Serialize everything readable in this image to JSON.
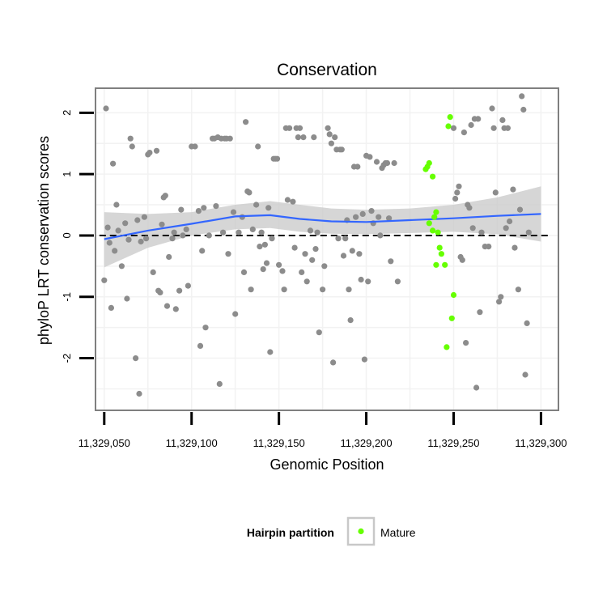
{
  "chart_data": {
    "type": "scatter",
    "title": "Conservation",
    "xlabel": "Genomic Position",
    "ylabel": "phyloP LRT conservation scores",
    "xlim": [
      11329045,
      11329310
    ],
    "ylim": [
      -2.85,
      2.4
    ],
    "x_ticks": [
      11329050,
      11329100,
      11329150,
      11329200,
      11329250,
      11329300
    ],
    "x_tick_labels": [
      "11,329,050",
      "11,329,100",
      "11,329,150",
      "11,329,200",
      "11,329,250",
      "11,329,300"
    ],
    "y_ticks": [
      -2,
      -1,
      0,
      1,
      2
    ],
    "y_tick_labels": [
      "-2",
      "-1",
      "0",
      "1",
      "2"
    ],
    "grid": true,
    "reference_line": {
      "y": 0,
      "style": "dashed"
    },
    "legend": {
      "title": "Hairpin partition",
      "placement": "bottom",
      "entries": [
        "Mature"
      ]
    },
    "colors": {
      "other": "#8c8c8c",
      "mature": "#66ff00",
      "smooth": "#3366ff",
      "ribbon": "#c8c8c8",
      "panel_border": "#7f7f7f",
      "grid": "#f2f2f2"
    },
    "series": [
      {
        "name": "Mature",
        "points": [
          [
            11329234,
            1.08
          ],
          [
            11329235,
            1.12
          ],
          [
            11329236,
            1.18
          ],
          [
            11329238,
            0.96
          ],
          [
            11329239,
            0.3
          ],
          [
            11329240,
            0.38
          ],
          [
            11329241,
            0.05
          ],
          [
            11329242,
            -0.2
          ],
          [
            11329243,
            -0.3
          ],
          [
            11329245,
            -0.48
          ],
          [
            11329246,
            -1.82
          ],
          [
            11329247,
            1.78
          ],
          [
            11329248,
            1.93
          ],
          [
            11329249,
            -1.35
          ],
          [
            11329250,
            -0.97
          ],
          [
            11329236,
            0.2
          ],
          [
            11329238,
            0.08
          ],
          [
            11329240,
            -0.48
          ]
        ]
      }
    ],
    "other_points": [
      [
        11329050,
        -0.73
      ],
      [
        11329051,
        2.07
      ],
      [
        11329052,
        0.13
      ],
      [
        11329053,
        -0.12
      ],
      [
        11329054,
        -1.18
      ],
      [
        11329055,
        1.17
      ],
      [
        11329056,
        -0.25
      ],
      [
        11329057,
        0.5
      ],
      [
        11329058,
        0.08
      ],
      [
        11329060,
        -0.5
      ],
      [
        11329062,
        0.2
      ],
      [
        11329063,
        -1.03
      ],
      [
        11329064,
        -0.07
      ],
      [
        11329065,
        1.58
      ],
      [
        11329066,
        1.45
      ],
      [
        11329068,
        -2.0
      ],
      [
        11329069,
        0.25
      ],
      [
        11329070,
        -2.58
      ],
      [
        11329071,
        -0.1
      ],
      [
        11329073,
        0.3
      ],
      [
        11329074,
        -0.05
      ],
      [
        11329075,
        1.32
      ],
      [
        11329076,
        1.35
      ],
      [
        11329078,
        -0.6
      ],
      [
        11329080,
        1.38
      ],
      [
        11329081,
        -0.9
      ],
      [
        11329082,
        -0.93
      ],
      [
        11329083,
        0.18
      ],
      [
        11329084,
        0.62
      ],
      [
        11329085,
        0.65
      ],
      [
        11329086,
        -1.15
      ],
      [
        11329087,
        -0.35
      ],
      [
        11329089,
        -0.05
      ],
      [
        11329090,
        0.05
      ],
      [
        11329091,
        -1.2
      ],
      [
        11329093,
        -0.9
      ],
      [
        11329094,
        0.42
      ],
      [
        11329095,
        0.0
      ],
      [
        11329097,
        0.1
      ],
      [
        11329098,
        -0.82
      ],
      [
        11329100,
        1.45
      ],
      [
        11329102,
        1.45
      ],
      [
        11329104,
        0.4
      ],
      [
        11329105,
        -1.8
      ],
      [
        11329106,
        -0.25
      ],
      [
        11329107,
        0.45
      ],
      [
        11329108,
        -1.5
      ],
      [
        11329110,
        0.0
      ],
      [
        11329112,
        1.58
      ],
      [
        11329113,
        1.58
      ],
      [
        11329114,
        0.48
      ],
      [
        11329115,
        1.6
      ],
      [
        11329116,
        -2.42
      ],
      [
        11329117,
        1.58
      ],
      [
        11329118,
        0.05
      ],
      [
        11329119,
        1.58
      ],
      [
        11329120,
        1.58
      ],
      [
        11329121,
        -0.3
      ],
      [
        11329122,
        1.58
      ],
      [
        11329124,
        0.38
      ],
      [
        11329125,
        -1.28
      ],
      [
        11329127,
        0.05
      ],
      [
        11329129,
        0.3
      ],
      [
        11329130,
        -0.6
      ],
      [
        11329131,
        1.85
      ],
      [
        11329132,
        0.72
      ],
      [
        11329133,
        0.7
      ],
      [
        11329134,
        -0.88
      ],
      [
        11329135,
        0.1
      ],
      [
        11329137,
        0.5
      ],
      [
        11329138,
        1.45
      ],
      [
        11329139,
        -0.18
      ],
      [
        11329140,
        0.05
      ],
      [
        11329141,
        -0.55
      ],
      [
        11329142,
        -0.15
      ],
      [
        11329143,
        -0.45
      ],
      [
        11329144,
        0.45
      ],
      [
        11329145,
        -1.9
      ],
      [
        11329146,
        -0.05
      ],
      [
        11329147,
        1.25
      ],
      [
        11329148,
        1.25
      ],
      [
        11329149,
        1.25
      ],
      [
        11329150,
        -0.48
      ],
      [
        11329152,
        -0.58
      ],
      [
        11329153,
        -0.88
      ],
      [
        11329154,
        1.75
      ],
      [
        11329155,
        0.58
      ],
      [
        11329156,
        1.75
      ],
      [
        11329158,
        0.55
      ],
      [
        11329159,
        -0.2
      ],
      [
        11329160,
        1.75
      ],
      [
        11329161,
        1.6
      ],
      [
        11329162,
        1.75
      ],
      [
        11329163,
        -0.6
      ],
      [
        11329164,
        1.6
      ],
      [
        11329165,
        -0.3
      ],
      [
        11329166,
        -0.75
      ],
      [
        11329168,
        0.08
      ],
      [
        11329169,
        -0.4
      ],
      [
        11329170,
        1.6
      ],
      [
        11329171,
        -0.22
      ],
      [
        11329172,
        0.05
      ],
      [
        11329173,
        -1.58
      ],
      [
        11329175,
        -0.88
      ],
      [
        11329176,
        -0.5
      ],
      [
        11329178,
        1.75
      ],
      [
        11329179,
        1.65
      ],
      [
        11329180,
        1.5
      ],
      [
        11329181,
        -2.07
      ],
      [
        11329182,
        1.6
      ],
      [
        11329183,
        1.4
      ],
      [
        11329184,
        -0.05
      ],
      [
        11329185,
        1.4
      ],
      [
        11329186,
        1.4
      ],
      [
        11329187,
        -0.33
      ],
      [
        11329188,
        -0.05
      ],
      [
        11329189,
        0.25
      ],
      [
        11329190,
        -0.88
      ],
      [
        11329191,
        -1.38
      ],
      [
        11329192,
        -0.25
      ],
      [
        11329193,
        1.12
      ],
      [
        11329194,
        0.3
      ],
      [
        11329195,
        1.12
      ],
      [
        11329196,
        -0.3
      ],
      [
        11329197,
        -0.72
      ],
      [
        11329198,
        0.35
      ],
      [
        11329199,
        -2.02
      ],
      [
        11329200,
        1.3
      ],
      [
        11329201,
        -0.75
      ],
      [
        11329202,
        1.28
      ],
      [
        11329203,
        0.4
      ],
      [
        11329204,
        0.2
      ],
      [
        11329206,
        1.2
      ],
      [
        11329207,
        0.3
      ],
      [
        11329208,
        0.0
      ],
      [
        11329209,
        1.1
      ],
      [
        11329210,
        1.15
      ],
      [
        11329211,
        1.18
      ],
      [
        11329212,
        1.18
      ],
      [
        11329213,
        0.28
      ],
      [
        11329214,
        -0.42
      ],
      [
        11329216,
        1.18
      ],
      [
        11329218,
        -0.75
      ],
      [
        11329250,
        1.75
      ],
      [
        11329251,
        0.6
      ],
      [
        11329252,
        0.7
      ],
      [
        11329253,
        0.8
      ],
      [
        11329254,
        -0.35
      ],
      [
        11329255,
        -0.4
      ],
      [
        11329256,
        1.68
      ],
      [
        11329257,
        -1.75
      ],
      [
        11329258,
        0.5
      ],
      [
        11329259,
        0.45
      ],
      [
        11329260,
        1.8
      ],
      [
        11329261,
        0.12
      ],
      [
        11329262,
        1.9
      ],
      [
        11329263,
        -2.48
      ],
      [
        11329264,
        1.9
      ],
      [
        11329265,
        -1.25
      ],
      [
        11329266,
        0.05
      ],
      [
        11329268,
        -0.18
      ],
      [
        11329270,
        -0.18
      ],
      [
        11329272,
        2.07
      ],
      [
        11329273,
        1.75
      ],
      [
        11329274,
        0.7
      ],
      [
        11329276,
        -1.08
      ],
      [
        11329277,
        -1.0
      ],
      [
        11329278,
        1.88
      ],
      [
        11329279,
        1.75
      ],
      [
        11329280,
        0.12
      ],
      [
        11329281,
        1.75
      ],
      [
        11329282,
        0.23
      ],
      [
        11329284,
        0.75
      ],
      [
        11329285,
        -0.2
      ],
      [
        11329287,
        -0.88
      ],
      [
        11329288,
        0.42
      ],
      [
        11329289,
        2.27
      ],
      [
        11329290,
        2.05
      ],
      [
        11329291,
        -2.27
      ],
      [
        11329292,
        -1.43
      ],
      [
        11329293,
        0.05
      ]
    ],
    "smooth_line": [
      [
        11329050,
        -0.06
      ],
      [
        11329075,
        0.08
      ],
      [
        11329100,
        0.19
      ],
      [
        11329125,
        0.31
      ],
      [
        11329145,
        0.33
      ],
      [
        11329162,
        0.27
      ],
      [
        11329180,
        0.23
      ],
      [
        11329200,
        0.22
      ],
      [
        11329225,
        0.25
      ],
      [
        11329250,
        0.28
      ],
      [
        11329275,
        0.32
      ],
      [
        11329300,
        0.35
      ]
    ],
    "ribbon_upper": [
      [
        11329050,
        0.38
      ],
      [
        11329075,
        0.35
      ],
      [
        11329100,
        0.38
      ],
      [
        11329125,
        0.5
      ],
      [
        11329145,
        0.56
      ],
      [
        11329162,
        0.5
      ],
      [
        11329180,
        0.44
      ],
      [
        11329200,
        0.42
      ],
      [
        11329225,
        0.44
      ],
      [
        11329250,
        0.5
      ],
      [
        11329275,
        0.62
      ],
      [
        11329300,
        0.8
      ]
    ],
    "ribbon_lower": [
      [
        11329050,
        -0.52
      ],
      [
        11329075,
        -0.2
      ],
      [
        11329100,
        0.0
      ],
      [
        11329125,
        0.1
      ],
      [
        11329145,
        0.12
      ],
      [
        11329162,
        0.06
      ],
      [
        11329180,
        0.03
      ],
      [
        11329200,
        0.02
      ],
      [
        11329225,
        0.04
      ],
      [
        11329250,
        0.06
      ],
      [
        11329275,
        0.02
      ],
      [
        11329300,
        -0.1
      ]
    ]
  }
}
